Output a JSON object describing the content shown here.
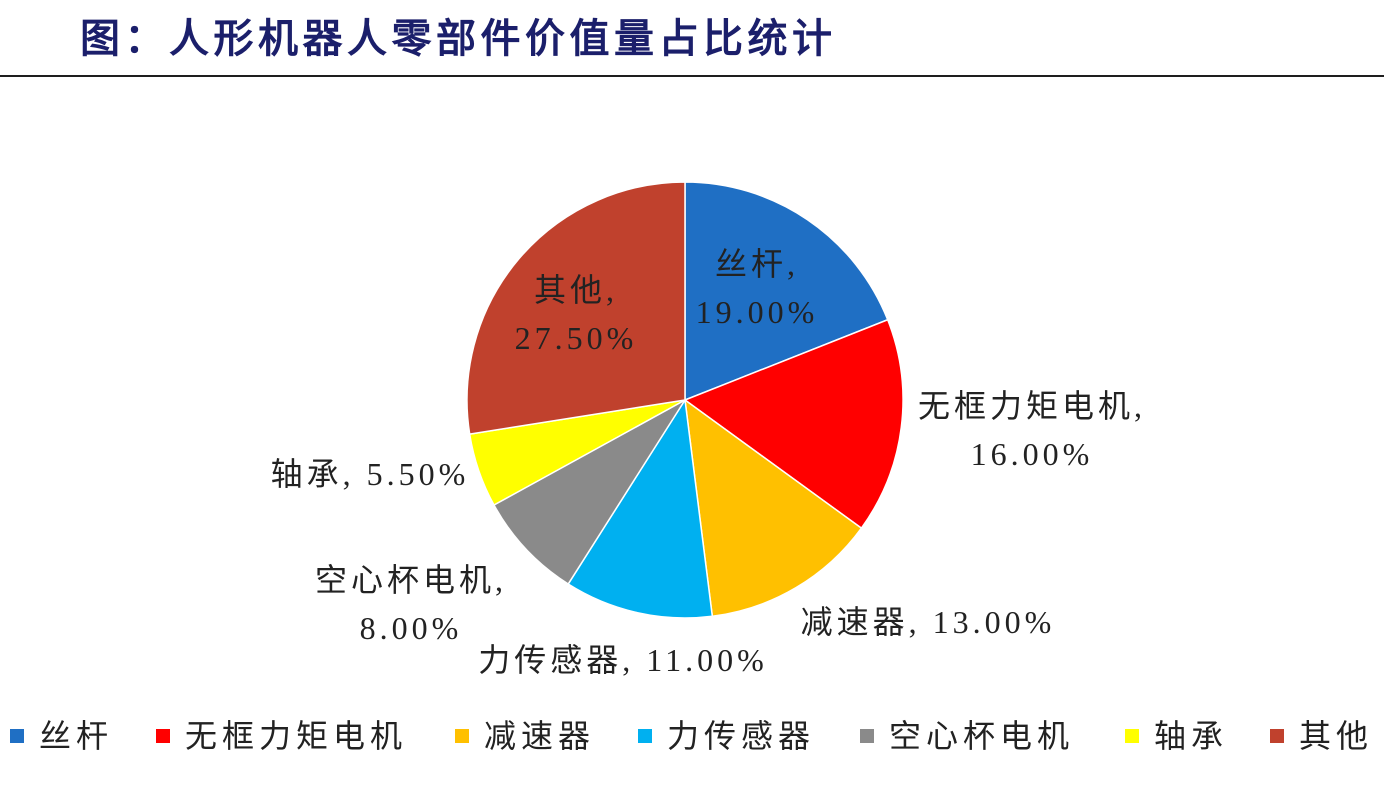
{
  "chart_data": {
    "type": "pie",
    "title": "图：人形机器人零部件价值量占比统计",
    "legend_position": "bottom",
    "slices": [
      {
        "label": "丝杆",
        "value": 19.0,
        "data_label": "丝杆, 19.00%",
        "color": "#1F6FC4"
      },
      {
        "label": "无框力矩电机",
        "value": 16.0,
        "data_label": "无框力矩电机, 16.00%",
        "color": "#FF0000"
      },
      {
        "label": "减速器",
        "value": 13.0,
        "data_label": "减速器, 13.00%",
        "color": "#FFC000"
      },
      {
        "label": "力传感器",
        "value": 11.0,
        "data_label": "力传感器, 11.00%",
        "color": "#00B0F0"
      },
      {
        "label": "空心杯电机",
        "value": 8.0,
        "data_label": "空心杯电机, 8.00%",
        "color": "#8A8A8A"
      },
      {
        "label": "轴承",
        "value": 5.5,
        "data_label": "轴承, 5.50%",
        "color": "#FFFF00"
      },
      {
        "label": "其他",
        "value": 27.5,
        "data_label": "其他, 27.50%",
        "color": "#C0412D"
      }
    ]
  }
}
